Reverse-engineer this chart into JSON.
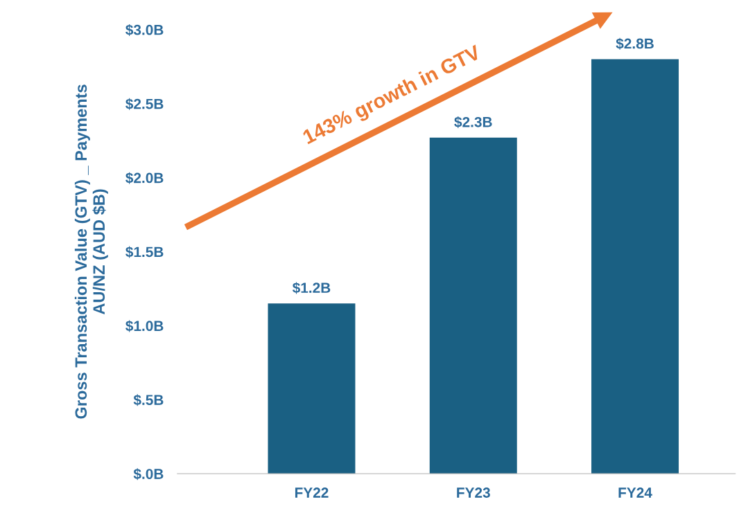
{
  "chart_data": {
    "type": "bar",
    "ylabel": "Gross Transaction Value (GTV) _ Payments\nAU/NZ (AUD $B)",
    "categories": [
      "FY22",
      "FY23",
      "FY24"
    ],
    "values": [
      1.15,
      2.27,
      2.8
    ],
    "color": "#1a6083",
    "value_labels": [
      "$1.2B",
      "$2.3B",
      "$2.8B"
    ],
    "ylim": [
      0,
      3.0
    ],
    "yticks": [
      {
        "value": 0,
        "label": "$.0B"
      },
      {
        "value": 0.5,
        "label": "$.5B"
      },
      {
        "value": 1.0,
        "label": "$1.0B"
      },
      {
        "value": 1.5,
        "label": "$1.5B"
      },
      {
        "value": 2.0,
        "label": "$2.0B"
      },
      {
        "value": 2.5,
        "label": "$2.5B"
      },
      {
        "value": 3.0,
        "label": "$3.0B"
      }
    ],
    "grid": false,
    "legend": false,
    "annotations": [
      "143% growth in GTV"
    ]
  }
}
